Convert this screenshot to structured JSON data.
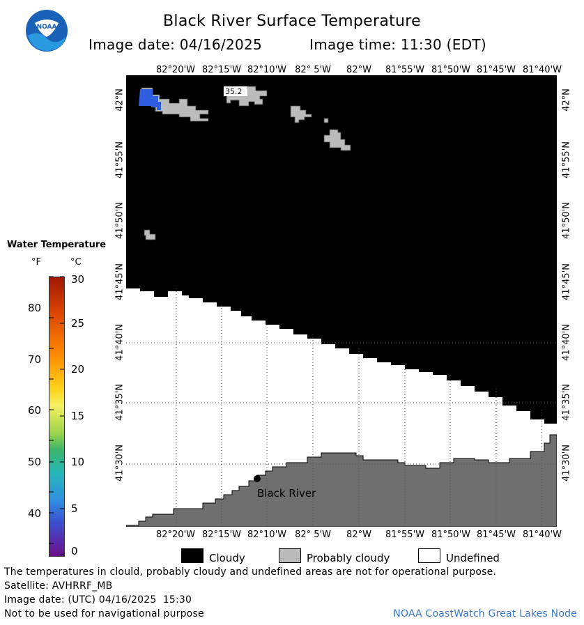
{
  "header": {
    "title": "Black River Surface Temperature",
    "date_label": "Image date: 04/16/2025",
    "time_label": "Image time: 11:30 (EDT)"
  },
  "longitude_labels": [
    "82°20'W",
    "82°15'W",
    "82°10'W",
    "82° 5'W",
    "82°W",
    "81°55'W",
    "81°50'W",
    "81°45'W",
    "81°40'W"
  ],
  "latitude_labels": [
    "42°N",
    "41°55'N",
    "41°50'N",
    "41°45'N",
    "41°40'N",
    "41°35'N",
    "41°30'N"
  ],
  "map": {
    "station_label": "Black River",
    "temp_readout": "35.2",
    "colors": {
      "cloud": "#000000",
      "probably_cloudy": "#bbbbbb",
      "undefined": "#ffffff",
      "land": "#6f6f6f",
      "water_cold": "#2f5fe0"
    }
  },
  "legend": {
    "title": "Water Temperature",
    "unit_f": "°F",
    "unit_c": "°C",
    "f_ticks": [
      "80",
      "70",
      "60",
      "50",
      "40"
    ],
    "c_ticks": [
      "30",
      "25",
      "20",
      "15",
      "10",
      "5",
      "0"
    ]
  },
  "key": {
    "cloudy": "Cloudy",
    "probably_cloudy": "Probably cloudy",
    "undefined": "Undefined"
  },
  "footer": {
    "disclaimer": "The temperatures in clould, probably cloudy and undefined areas are not for operational purpose.",
    "satellite": "Satellite: AVHRRF_MB",
    "utc_date": "Image date: (UTC) 04/16/2025  15:30",
    "nav_warning": "Not to be used for navigational purpose",
    "credit": "NOAA CoastWatch Great Lakes Node"
  }
}
